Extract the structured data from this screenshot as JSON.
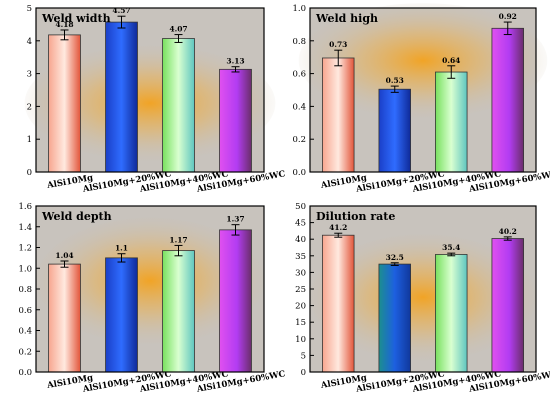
{
  "colors": {
    "bar_fills": [
      "#f28b6e",
      "#1f49d6",
      "#86ee6a",
      "#b63cf0"
    ],
    "panel_bg": "#c8c3bd",
    "panel_glow": "#f3a21e"
  },
  "chart_data": [
    {
      "type": "bar",
      "title": "Weld width",
      "categories": [
        "AlSi10Mg",
        "AlSi10Mg+20%WC",
        "AlSi10Mg+40%WC",
        "AlSi10Mg+60%WC"
      ],
      "values": [
        4.18,
        4.57,
        4.07,
        3.13
      ],
      "data_labels": [
        "4.18",
        "4.57",
        "4.07",
        "3.13"
      ],
      "error": [
        0.15,
        0.18,
        0.12,
        0.08
      ],
      "ylim": [
        0,
        5
      ],
      "yticks": [
        "0",
        "1",
        "2",
        "3",
        "4",
        "5"
      ],
      "xlabel": "",
      "ylabel": ""
    },
    {
      "type": "bar",
      "title": "Weld high",
      "categories": [
        "AlSi10Mg",
        "AlSi10Mg+20%WC",
        "AlSi10Mg+40%WC",
        "AlSi10Mg+60%WC"
      ],
      "values": [
        0.73,
        0.53,
        0.64,
        0.92
      ],
      "data_labels": [
        "0.73",
        "0.53",
        "0.64",
        "0.92"
      ],
      "error": [
        0.05,
        0.02,
        0.04,
        0.04
      ],
      "ylim": [
        0,
        1.05
      ],
      "yticks": [
        "0.0",
        "0.2",
        "0.4",
        "0.6",
        "0.8",
        "1.0"
      ],
      "xlabel": "",
      "ylabel": ""
    },
    {
      "type": "bar",
      "title": "Weld depth",
      "categories": [
        "AlSi10Mg",
        "AlSi10Mg+20%WC",
        "AlSi10Mg+40%WC",
        "AlSi10Mg+60%WC"
      ],
      "values": [
        1.04,
        1.1,
        1.17,
        1.37
      ],
      "data_labels": [
        "1.04",
        "1.1",
        "1.17",
        "1.37"
      ],
      "error": [
        0.03,
        0.04,
        0.05,
        0.05
      ],
      "ylim": [
        0,
        1.6
      ],
      "yticks": [
        "0.0",
        "0.2",
        "0.4",
        "0.6",
        "0.8",
        "1.0",
        "1.2",
        "1.4",
        "1.6"
      ],
      "xlabel": "",
      "ylabel": ""
    },
    {
      "type": "bar",
      "title": "Dilution rate",
      "categories": [
        "AlSi10Mg",
        "AlSi10Mg+20%WC",
        "AlSi10Mg+40%WC",
        "AlSi10Mg+60%WC"
      ],
      "values": [
        41.2,
        32.5,
        35.4,
        40.2
      ],
      "data_labels": [
        "41.2",
        "32.5",
        "35.4",
        "40.2"
      ],
      "error": [
        0.6,
        0.4,
        0.4,
        0.5
      ],
      "ylim": [
        0,
        50
      ],
      "yticks": [
        "0",
        "5",
        "10",
        "15",
        "20",
        "25",
        "30",
        "35",
        "40",
        "45",
        "50"
      ],
      "xlabel": "",
      "ylabel": ""
    }
  ]
}
